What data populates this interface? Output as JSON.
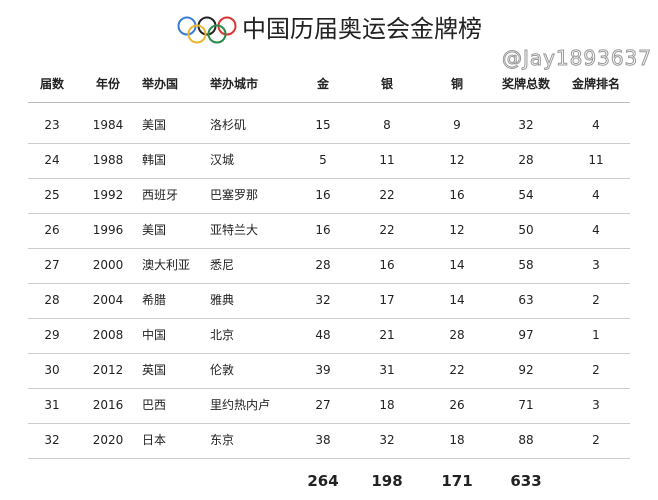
{
  "title": "中国历届奥运会金牌榜",
  "logo": "olympic-rings",
  "headers": [
    "届数",
    "年份",
    "举办国",
    "举办城市",
    "金",
    "银",
    "铜",
    "奖牌总数",
    "金牌排名"
  ],
  "rows": [
    [
      "23",
      "1984",
      "美国",
      "洛杉矶",
      "15",
      "8",
      "9",
      "32",
      "4"
    ],
    [
      "24",
      "1988",
      "韩国",
      "汉城",
      "5",
      "11",
      "12",
      "28",
      "11"
    ],
    [
      "25",
      "1992",
      "西班牙",
      "巴塞罗那",
      "16",
      "22",
      "16",
      "54",
      "4"
    ],
    [
      "26",
      "1996",
      "美国",
      "亚特兰大",
      "16",
      "22",
      "12",
      "50",
      "4"
    ],
    [
      "27",
      "2000",
      "澳大利亚",
      "悉尼",
      "28",
      "16",
      "14",
      "58",
      "3"
    ],
    [
      "28",
      "2004",
      "希腊",
      "雅典",
      "32",
      "17",
      "14",
      "63",
      "2"
    ],
    [
      "29",
      "2008",
      "中国",
      "北京",
      "48",
      "21",
      "28",
      "97",
      "1"
    ],
    [
      "30",
      "2012",
      "英国",
      "伦敦",
      "39",
      "31",
      "22",
      "92",
      "2"
    ],
    [
      "31",
      "2016",
      "巴西",
      "里约热内卢",
      "27",
      "18",
      "26",
      "71",
      "3"
    ],
    [
      "32",
      "2020",
      "日本",
      "东京",
      "38",
      "32",
      "18",
      "88",
      "2"
    ]
  ],
  "totals": {
    "gold": "264",
    "silver": "198",
    "bronze": "171",
    "total": "633"
  },
  "watermark": "@Jay1893637"
}
